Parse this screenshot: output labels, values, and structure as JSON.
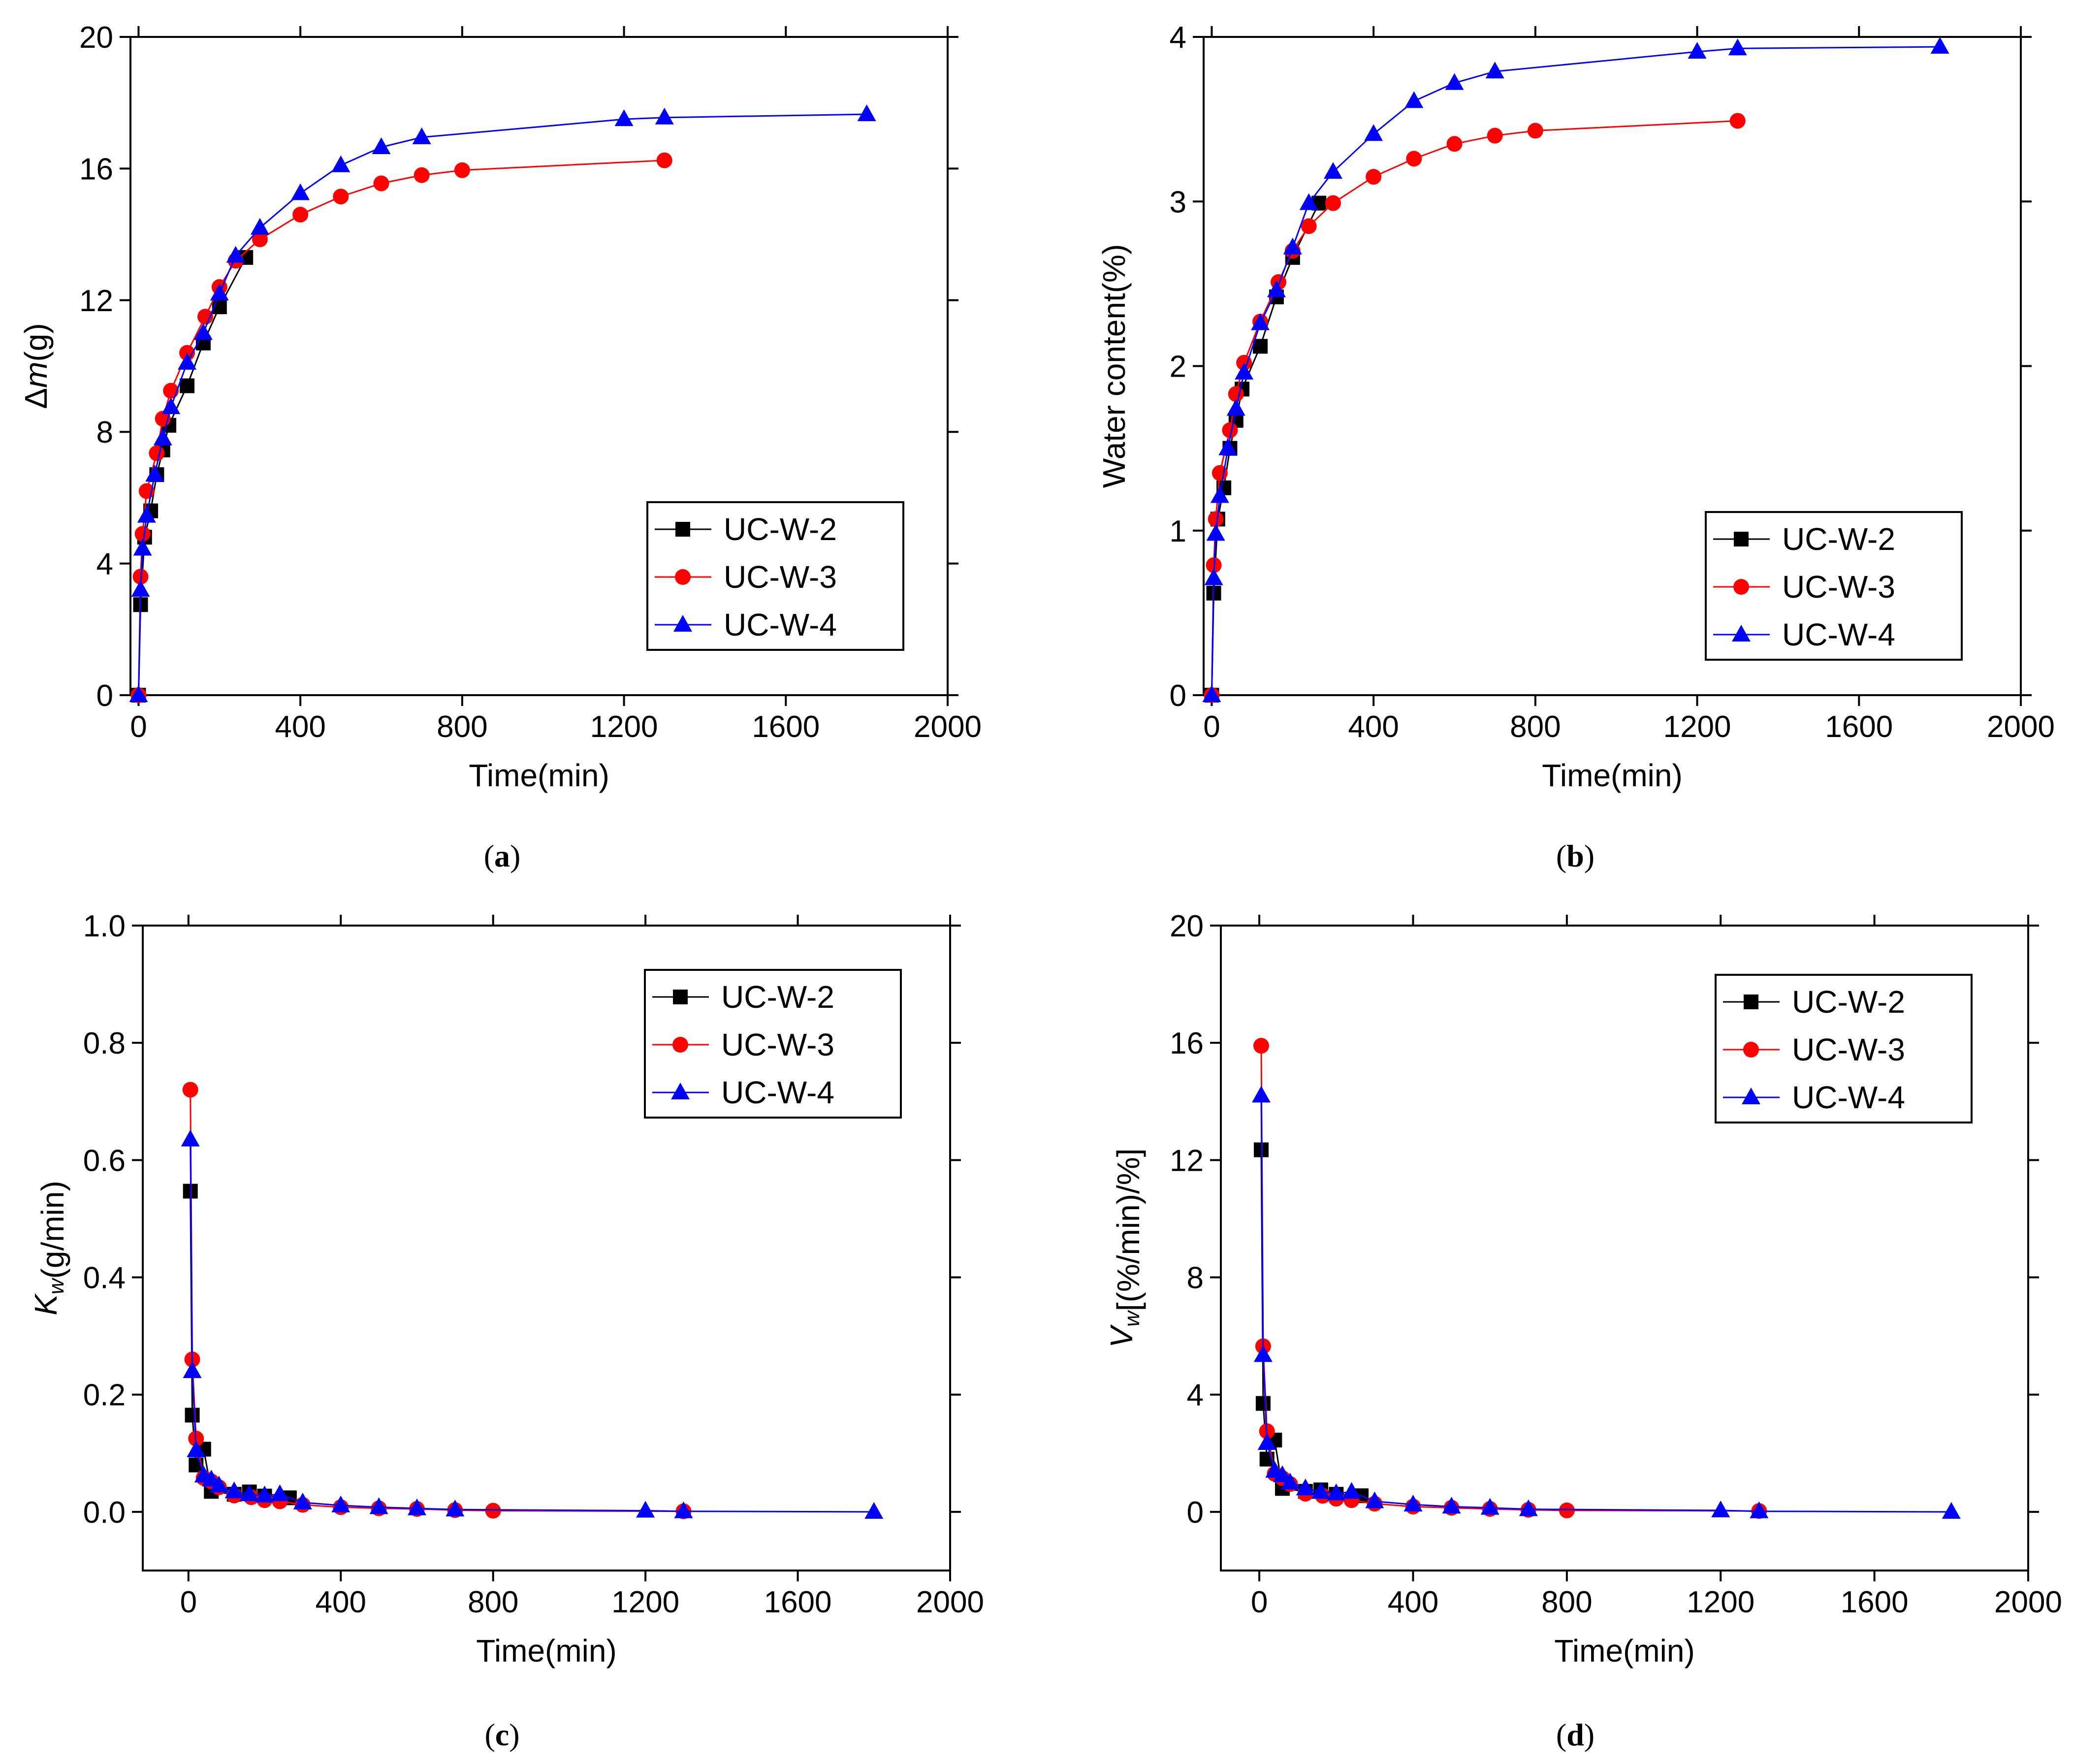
{
  "chart_data": [
    {
      "type": "line",
      "panel_label": "a",
      "xlabel": "Time(min)",
      "ylabel_parts": [
        {
          "text": "Δ",
          "italic": false,
          "sub": false
        },
        {
          "text": "m",
          "italic": true,
          "sub": false
        },
        {
          "text": "(g)",
          "italic": false,
          "sub": false
        }
      ],
      "xlim": [
        -20,
        2000
      ],
      "ylim": [
        0,
        20
      ],
      "xticks": [
        0,
        400,
        800,
        1200,
        1600,
        2000
      ],
      "yticks": [
        0,
        4,
        8,
        12,
        16,
        20
      ],
      "xtick_labels": [
        "0",
        "400",
        "800",
        "1200",
        "1600",
        "2000"
      ],
      "ytick_labels": [
        "0",
        "4",
        "8",
        "12",
        "16",
        "20"
      ],
      "legend": {
        "position": "lower-right",
        "entries": [
          "UC-W-2",
          "UC-W-3",
          "UC-W-4"
        ]
      },
      "series": [
        {
          "name": "UC-W-2",
          "color": "#000000",
          "marker": "square",
          "x": [
            0,
            5,
            15,
            30,
            45,
            60,
            75,
            120,
            160,
            200,
            265
          ],
          "y": [
            0,
            2.75,
            4.8,
            5.6,
            6.7,
            7.45,
            8.2,
            9.4,
            10.7,
            11.8,
            13.3
          ]
        },
        {
          "name": "UC-W-3",
          "color": "#ff0000",
          "marker": "circle",
          "x": [
            0,
            5,
            10,
            20,
            45,
            60,
            80,
            120,
            165,
            200,
            240,
            300,
            400,
            500,
            600,
            700,
            800,
            1300
          ],
          "y": [
            0,
            3.6,
            4.9,
            6.2,
            7.35,
            8.4,
            9.25,
            10.4,
            11.5,
            12.4,
            13.2,
            13.85,
            14.6,
            15.15,
            15.55,
            15.8,
            15.95,
            16.25
          ]
        },
        {
          "name": "UC-W-4",
          "color": "#0000ff",
          "marker": "triangle",
          "x": [
            0,
            5,
            10,
            20,
            40,
            60,
            80,
            120,
            160,
            200,
            240,
            300,
            400,
            500,
            600,
            700,
            1200,
            1300,
            1800
          ],
          "y": [
            0,
            3.2,
            4.45,
            5.45,
            6.7,
            7.8,
            8.75,
            10.1,
            11.0,
            12.2,
            13.35,
            14.2,
            15.25,
            16.1,
            16.65,
            16.95,
            17.5,
            17.55,
            17.65
          ]
        }
      ]
    },
    {
      "type": "line",
      "panel_label": "b",
      "xlabel": "Time(min)",
      "ylabel_parts": [
        {
          "text": "Water content(%)",
          "italic": false,
          "sub": false
        }
      ],
      "xlim": [
        -20,
        2000
      ],
      "ylim": [
        0,
        4
      ],
      "xticks": [
        0,
        400,
        800,
        1200,
        1600,
        2000
      ],
      "yticks": [
        0,
        1,
        2,
        3,
        4
      ],
      "xtick_labels": [
        "0",
        "400",
        "800",
        "1200",
        "1600",
        "2000"
      ],
      "ytick_labels": [
        "0",
        "1",
        "2",
        "3",
        "4"
      ],
      "legend": {
        "position": "lower-right",
        "entries": [
          "UC-W-2",
          "UC-W-3",
          "UC-W-4"
        ]
      },
      "series": [
        {
          "name": "UC-W-2",
          "color": "#000000",
          "marker": "square",
          "x": [
            0,
            5,
            15,
            30,
            45,
            60,
            75,
            120,
            160,
            200,
            265
          ],
          "y": [
            0,
            0.62,
            1.07,
            1.26,
            1.5,
            1.67,
            1.86,
            2.12,
            2.42,
            2.66,
            2.99
          ]
        },
        {
          "name": "UC-W-3",
          "color": "#ff0000",
          "marker": "circle",
          "x": [
            0,
            5,
            10,
            20,
            45,
            60,
            80,
            120,
            165,
            200,
            240,
            300,
            400,
            500,
            600,
            700,
            800,
            1300
          ],
          "y": [
            0,
            0.79,
            1.07,
            1.35,
            1.61,
            1.83,
            2.02,
            2.27,
            2.51,
            2.7,
            2.85,
            2.99,
            3.15,
            3.26,
            3.35,
            3.4,
            3.43,
            3.49
          ]
        },
        {
          "name": "UC-W-4",
          "color": "#0000ff",
          "marker": "triangle",
          "x": [
            0,
            5,
            10,
            20,
            40,
            60,
            80,
            120,
            160,
            200,
            240,
            300,
            400,
            500,
            600,
            700,
            1200,
            1300,
            1800
          ],
          "y": [
            0,
            0.71,
            0.98,
            1.21,
            1.5,
            1.74,
            1.96,
            2.26,
            2.46,
            2.72,
            2.99,
            3.18,
            3.41,
            3.61,
            3.72,
            3.79,
            3.91,
            3.93,
            3.94
          ]
        }
      ]
    },
    {
      "type": "line",
      "panel_label": "c",
      "xlabel": "Time(min)",
      "ylabel_parts": [
        {
          "text": "K",
          "italic": true,
          "sub": false
        },
        {
          "text": "w",
          "italic": true,
          "sub": true
        },
        {
          "text": "(g/min)",
          "italic": false,
          "sub": false
        }
      ],
      "xlim": [
        -120,
        2000
      ],
      "ylim": [
        -0.1,
        1.0
      ],
      "xticks": [
        0,
        400,
        800,
        1200,
        1600,
        2000
      ],
      "yticks": [
        0.0,
        0.2,
        0.4,
        0.6,
        0.8,
        1.0
      ],
      "xtick_labels": [
        "0",
        "400",
        "800",
        "1200",
        "1600",
        "2000"
      ],
      "ytick_labels": [
        "0.0",
        "0.2",
        "0.4",
        "0.6",
        "0.8",
        "1.0"
      ],
      "legend": {
        "position": "upper-right",
        "entries": [
          "UC-W-2",
          "UC-W-3",
          "UC-W-4"
        ]
      },
      "series": [
        {
          "name": "UC-W-2",
          "color": "#000000",
          "marker": "square",
          "x": [
            5,
            10,
            20,
            40,
            60,
            120,
            160,
            200,
            265
          ],
          "y": [
            0.547,
            0.165,
            0.08,
            0.107,
            0.035,
            0.03,
            0.034,
            0.027,
            0.024
          ]
        },
        {
          "name": "UC-W-3",
          "color": "#ff0000",
          "marker": "circle",
          "x": [
            5,
            10,
            20,
            40,
            60,
            80,
            120,
            165,
            200,
            240,
            300,
            400,
            500,
            600,
            700,
            800,
            1300
          ],
          "y": [
            0.72,
            0.26,
            0.125,
            0.058,
            0.052,
            0.042,
            0.028,
            0.025,
            0.02,
            0.018,
            0.012,
            0.008,
            0.006,
            0.005,
            0.003,
            0.002,
            0.001
          ]
        },
        {
          "name": "UC-W-4",
          "color": "#0000ff",
          "marker": "triangle",
          "x": [
            5,
            10,
            20,
            40,
            60,
            80,
            120,
            160,
            200,
            240,
            300,
            400,
            500,
            600,
            700,
            1200,
            1300,
            1800
          ],
          "y": [
            0.635,
            0.24,
            0.105,
            0.062,
            0.055,
            0.045,
            0.035,
            0.03,
            0.028,
            0.03,
            0.016,
            0.011,
            0.008,
            0.006,
            0.004,
            0.002,
            0.001,
            0.0
          ]
        }
      ]
    },
    {
      "type": "line",
      "panel_label": "d",
      "xlabel": "Time(min)",
      "ylabel_parts": [
        {
          "text": "V",
          "italic": true,
          "sub": false
        },
        {
          "text": "w",
          "italic": true,
          "sub": true
        },
        {
          "text": "[(%/min)/%]",
          "italic": false,
          "sub": false
        }
      ],
      "xlim": [
        -100,
        2000
      ],
      "ylim": [
        -2,
        20
      ],
      "xticks": [
        0,
        400,
        800,
        1200,
        1600,
        2000
      ],
      "yticks": [
        0,
        4,
        8,
        12,
        16,
        20
      ],
      "xtick_labels": [
        "0",
        "400",
        "800",
        "1200",
        "1600",
        "2000"
      ],
      "ytick_labels": [
        "0",
        "4",
        "8",
        "12",
        "16",
        "20"
      ],
      "legend": {
        "position": "upper-right",
        "entries": [
          "UC-W-2",
          "UC-W-3",
          "UC-W-4"
        ]
      },
      "series": [
        {
          "name": "UC-W-2",
          "color": "#000000",
          "marker": "square",
          "x": [
            5,
            10,
            20,
            40,
            60,
            120,
            160,
            200,
            265
          ],
          "y": [
            12.35,
            3.7,
            1.8,
            2.45,
            0.8,
            0.7,
            0.75,
            0.6,
            0.55
          ]
        },
        {
          "name": "UC-W-3",
          "color": "#ff0000",
          "marker": "circle",
          "x": [
            5,
            10,
            20,
            40,
            60,
            80,
            120,
            165,
            200,
            240,
            300,
            400,
            500,
            600,
            700,
            800,
            1300
          ],
          "y": [
            15.9,
            5.65,
            2.75,
            1.3,
            1.15,
            0.95,
            0.62,
            0.55,
            0.45,
            0.4,
            0.28,
            0.18,
            0.14,
            0.1,
            0.07,
            0.05,
            0.03
          ]
        },
        {
          "name": "UC-W-4",
          "color": "#0000ff",
          "marker": "triangle",
          "x": [
            5,
            10,
            20,
            40,
            60,
            80,
            120,
            160,
            200,
            240,
            300,
            400,
            500,
            600,
            700,
            1200,
            1300,
            1800
          ],
          "y": [
            14.2,
            5.35,
            2.35,
            1.4,
            1.25,
            1.0,
            0.8,
            0.68,
            0.63,
            0.68,
            0.36,
            0.25,
            0.18,
            0.14,
            0.09,
            0.05,
            0.02,
            0.0
          ]
        }
      ]
    }
  ]
}
